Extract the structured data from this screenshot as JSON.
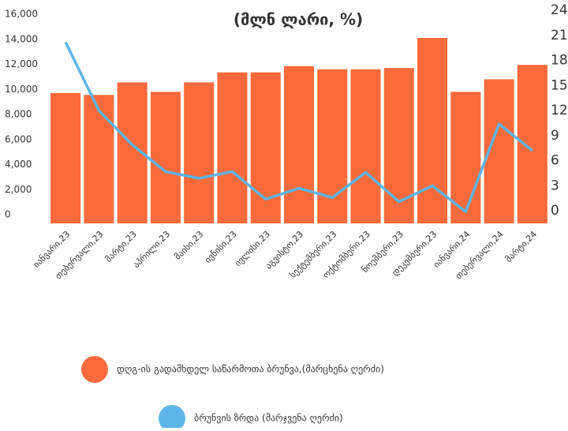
{
  "chart_data": {
    "type": "bar_line",
    "title": "(მლნ ლარი, %)",
    "categories": [
      "იანვარი,23",
      "თებერვალი,23",
      "მარტი,23",
      "აპრილი,23",
      "მაისი,23",
      "ივნისი,23",
      "ივლისი,23",
      "აგვისტო,23",
      "სექტემბერი,23",
      "ოქტომბერი,23",
      "ნოემბერი,23",
      "დეკემბერი,23",
      "იანვარი,24",
      "თებერვალი,24",
      "მარტი,24"
    ],
    "series": [
      {
        "name": "დღგ-ის გადამხდელ საწარმოთა ბრუნვა,(მარცხენა ღერძი)",
        "color": "#fb6a3a",
        "type": "bar",
        "values": [
          10400,
          10250,
          11250,
          10500,
          11250,
          12050,
          12050,
          12550,
          12300,
          12300,
          12400,
          14800,
          10500,
          11500,
          12650
        ]
      },
      {
        "name": "ბრუნვის ზრდა (მარჯვენა ღერძი)",
        "color": "#5db4e6",
        "type": "line",
        "axis": "y2",
        "values": [
          21.7,
          13.5,
          9.4,
          6.2,
          5.4,
          6.2,
          2.9,
          4.2,
          3.1,
          6.1,
          2.6,
          4.5,
          1.4,
          11.9,
          8.7
        ]
      }
    ],
    "ylim": [
      0,
      16000
    ],
    "yticks": [
      0,
      {
        "value": 2000,
        "label": "2,000"
      },
      {
        "value": 4000,
        "label": "4,000"
      },
      {
        "value": 6000,
        "label": "6,000"
      },
      {
        "value": 8000,
        "label": "8,000"
      },
      {
        "value": 10000,
        "label": "10,000"
      },
      {
        "value": 12000,
        "label": "12,000"
      },
      {
        "value": 14000,
        "label": "14,000"
      },
      {
        "value": 16000,
        "label": "16,000"
      }
    ],
    "y2lim": [
      0,
      24
    ],
    "y2ticks": [
      0,
      3,
      6,
      9,
      12,
      15,
      18,
      21,
      24
    ],
    "grid": false
  }
}
